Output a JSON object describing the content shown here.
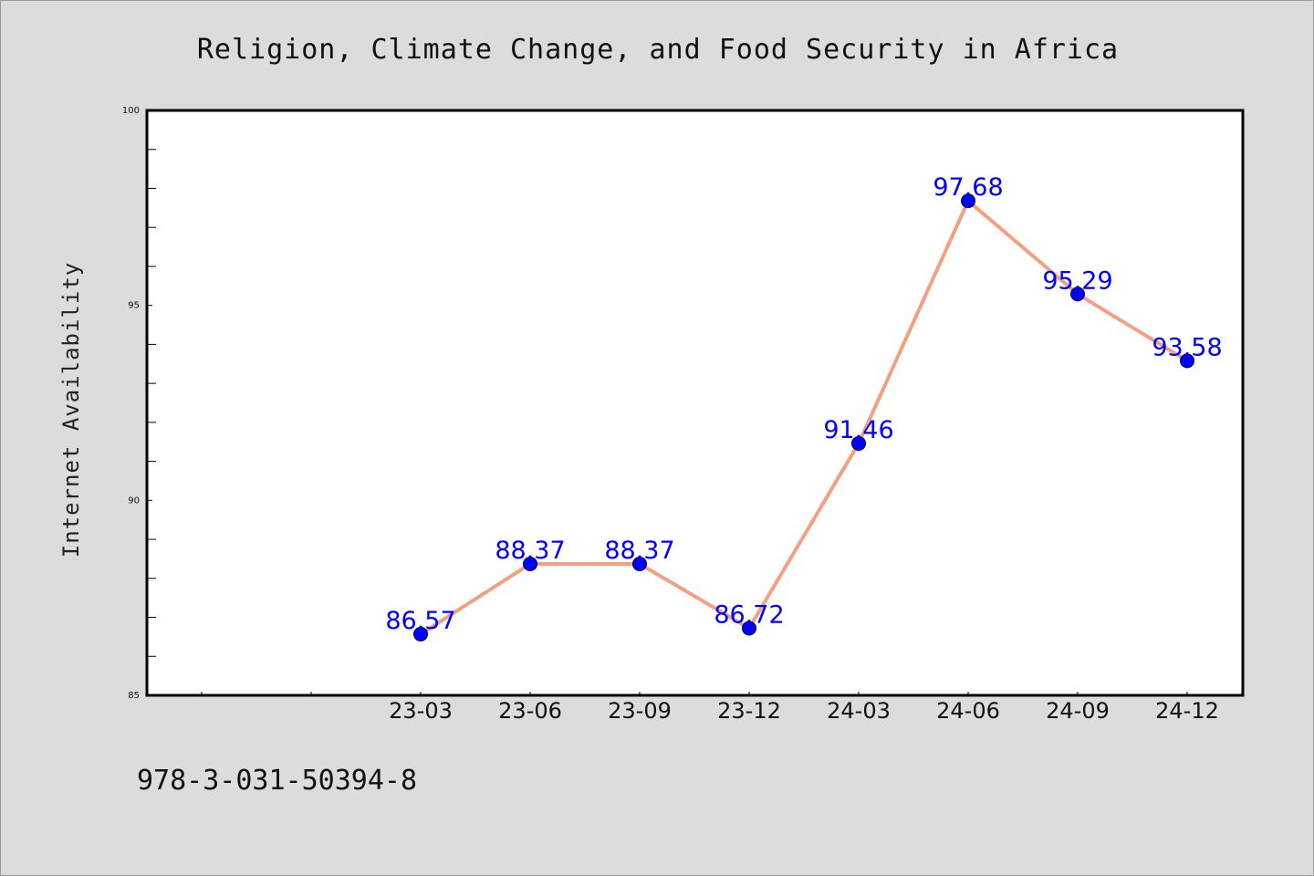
{
  "chart_data": {
    "type": "line",
    "title": "Religion, Climate Change, and Food Security in Africa",
    "xlabel": "",
    "ylabel": "Internet Availability",
    "categories": [
      "23-03",
      "23-06",
      "23-09",
      "23-12",
      "24-03",
      "24-06",
      "24-09",
      "24-12"
    ],
    "series": [
      {
        "values": [
          86.57,
          88.37,
          88.37,
          86.72,
          91.46,
          97.68,
          95.29,
          93.58
        ],
        "labels": [
          "86.57",
          "88.37",
          "88.37",
          "86.72",
          "91.46",
          "97.68",
          "95.29",
          "93.58"
        ]
      }
    ],
    "ylim": [
      85,
      100
    ],
    "yticks": [
      "85",
      "90",
      "95",
      "100"
    ],
    "grid": false,
    "legend": "none",
    "colors": {
      "line": "#f4a07f",
      "marker": "#0000ff",
      "data_label": "#0000ff",
      "background": "#dcdcdc",
      "plot_area": "#ffffff"
    }
  },
  "footer": {
    "isbn": "978-3-031-50394-8"
  }
}
